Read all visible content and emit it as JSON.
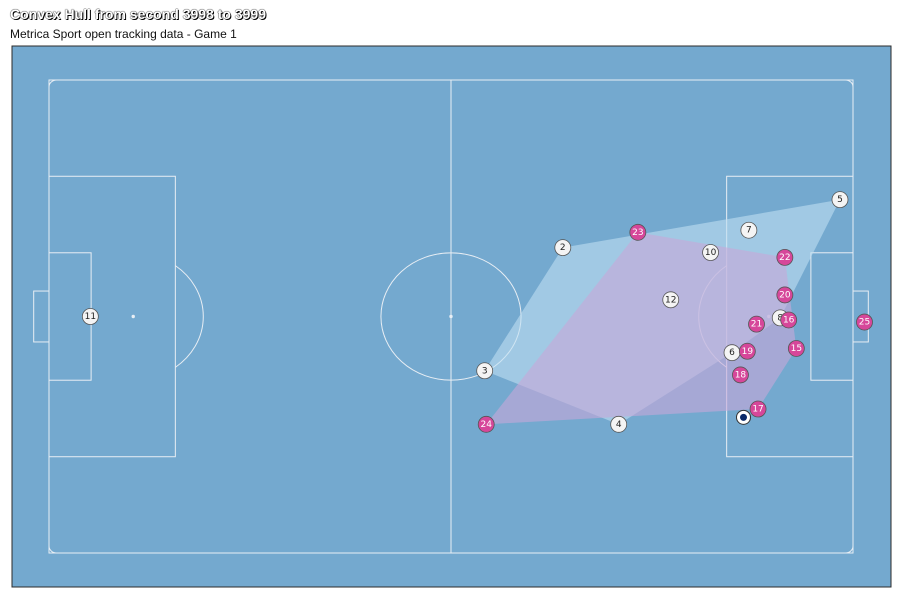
{
  "title": "Convex Hull from second 3998 to 3999",
  "subtitle": "Metrica Sport open tracking data - Game 1",
  "colors": {
    "pitch_background": "#74a9cf",
    "pitch_lines": "#e8eef4",
    "away_hull": "#bfe0f2",
    "home_hull": "#c8a8d8",
    "home_player": "#d6479a",
    "away_player": "#f4f4f4",
    "ball": "#0a2a6a"
  },
  "chart_data": {
    "type": "scatter",
    "pitch_length": 105,
    "pitch_width": 68,
    "xlim": [
      -52.5,
      52.5
    ],
    "ylim": [
      -34,
      34
    ],
    "away_players": [
      {
        "number": "11",
        "x": -47.1,
        "y": 0.0
      },
      {
        "number": "2",
        "x": 14.6,
        "y": -9.9
      },
      {
        "number": "3",
        "x": 4.4,
        "y": 7.8
      },
      {
        "number": "4",
        "x": 21.9,
        "y": 15.5
      },
      {
        "number": "5",
        "x": 50.8,
        "y": -16.8
      },
      {
        "number": "6",
        "x": 36.7,
        "y": 5.2
      },
      {
        "number": "7",
        "x": 38.9,
        "y": -12.4
      },
      {
        "number": "8",
        "x": 43.0,
        "y": 0.2
      },
      {
        "number": "10",
        "x": 33.9,
        "y": -9.2
      },
      {
        "number": "12",
        "x": 28.7,
        "y": -2.4
      }
    ],
    "home_players": [
      {
        "number": "15",
        "x": 45.1,
        "y": 4.6
      },
      {
        "number": "16",
        "x": 44.1,
        "y": 0.5
      },
      {
        "number": "17",
        "x": 40.1,
        "y": 13.3
      },
      {
        "number": "18",
        "x": 37.8,
        "y": 8.4
      },
      {
        "number": "19",
        "x": 38.7,
        "y": 5.0
      },
      {
        "number": "20",
        "x": 43.6,
        "y": -3.1
      },
      {
        "number": "21",
        "x": 39.9,
        "y": 1.1
      },
      {
        "number": "22",
        "x": 43.6,
        "y": -8.5
      },
      {
        "number": "23",
        "x": 24.4,
        "y": -12.1
      },
      {
        "number": "24",
        "x": 4.6,
        "y": 15.5
      },
      {
        "number": "25",
        "x": 54.0,
        "y": 0.8
      }
    ],
    "ball": {
      "x": 38.2,
      "y": 14.5
    }
  }
}
